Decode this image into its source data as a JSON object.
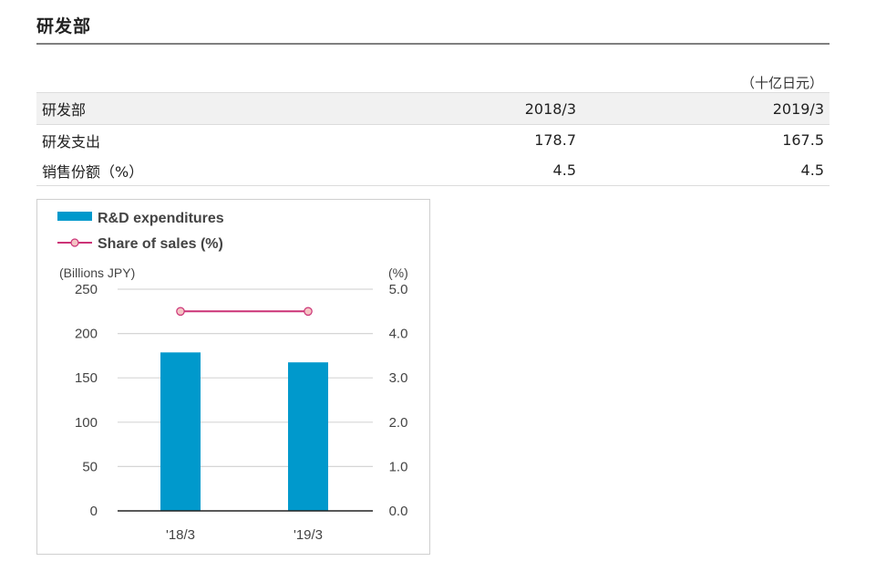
{
  "section": {
    "title": "研发部"
  },
  "table": {
    "unit_note": "（十亿日元）",
    "header": [
      "研发部",
      "2018/3",
      "2019/3"
    ],
    "rows": [
      [
        "研发支出",
        "178.7",
        "167.5"
      ],
      [
        "销售份额（%）",
        "4.5",
        "4.5"
      ]
    ]
  },
  "chart_data": {
    "type": "bar",
    "categories": [
      "'18/3",
      "'19/3"
    ],
    "series": [
      {
        "name": "R&D expenditures",
        "type": "bar",
        "axis": "left",
        "values": [
          178.7,
          167.5
        ],
        "color": "#0099cc"
      },
      {
        "name": "Share of sales (%)",
        "type": "line",
        "axis": "right",
        "values": [
          4.5,
          4.5
        ],
        "color": "#cc3377",
        "marker_fill": "#f4c4c4"
      }
    ],
    "y_left": {
      "label": "(Billions JPY)",
      "ylim": [
        0,
        250
      ],
      "ticks": [
        "250",
        "200",
        "150",
        "100",
        "50",
        "0"
      ]
    },
    "y_right": {
      "label": "(%)",
      "ylim": [
        0,
        5
      ],
      "ticks": [
        "5.0",
        "4.0",
        "3.0",
        "2.0",
        "1.0",
        "0.0"
      ]
    },
    "grid": true,
    "legend_position": "top-left"
  }
}
